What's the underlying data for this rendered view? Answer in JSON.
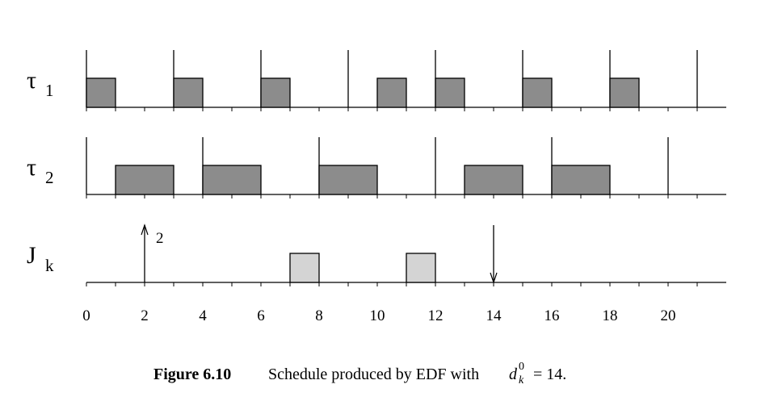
{
  "chart_data": {
    "type": "schedule",
    "xlim": [
      0,
      22
    ],
    "xticks": [
      0,
      2,
      4,
      6,
      8,
      10,
      12,
      14,
      16,
      18,
      20
    ],
    "minor_xticks": [
      0,
      1,
      2,
      3,
      4,
      5,
      6,
      7,
      8,
      9,
      10,
      11,
      12,
      13,
      14,
      15,
      16,
      17,
      18,
      19,
      20,
      21
    ],
    "rows": [
      {
        "label": "τ",
        "subscript": "1",
        "color": "#8c8c8c",
        "arrivals": [
          0,
          3,
          6,
          9,
          12,
          15,
          18,
          21
        ],
        "jobs": [
          [
            0,
            1
          ],
          [
            3,
            4
          ],
          [
            6,
            7
          ],
          [
            10,
            11
          ],
          [
            12,
            13
          ],
          [
            15,
            16
          ],
          [
            18,
            19
          ]
        ]
      },
      {
        "label": "τ",
        "subscript": "2",
        "color": "#8c8c8c",
        "arrivals": [
          0,
          4,
          8,
          12,
          16,
          20
        ],
        "jobs": [
          [
            1,
            3
          ],
          [
            4,
            6
          ],
          [
            8,
            10
          ],
          [
            13,
            15
          ],
          [
            16,
            18
          ]
        ]
      },
      {
        "label": "J",
        "subscript": "k",
        "color": "#d4d4d4",
        "release": 2,
        "wcet": 2,
        "deadline": 14,
        "jobs": [
          [
            7,
            8
          ],
          [
            11,
            12
          ]
        ]
      }
    ],
    "caption": {
      "label": "Figure 6.10",
      "text": "Schedule produced by EDF with",
      "math_var": "d",
      "math_sub": "k",
      "math_sup": "0",
      "math_rest": "= 14."
    }
  }
}
